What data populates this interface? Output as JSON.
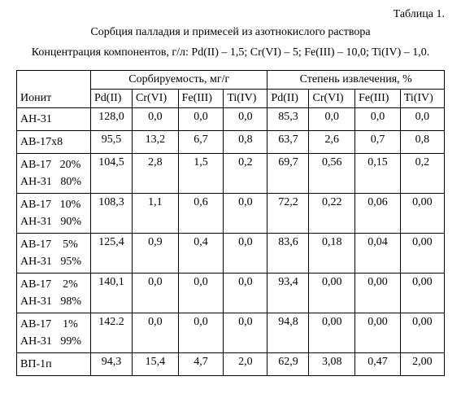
{
  "table_label": "Таблица 1.",
  "title": "Сорбция палладия и примесей из азотнокислого раствора",
  "subtitle": "Концентрация компонентов, г/л: Pd(II) – 1,5; Cr(VI) – 5; Fe(III) – 10,0; Ti(IV) – 1,0.",
  "headers": {
    "ionit": "Ионит",
    "sorb": "Сорбируемость, мг/г",
    "ext": "Степень извлечения, %",
    "pd": "Pd(II)",
    "cr": "Cr(VI)",
    "fe": "Fe(III)",
    "ti": "Ti(IV)"
  },
  "rows": [
    {
      "ionit_lines": [
        "АН-31"
      ],
      "sorb": [
        "128,0",
        "0,0",
        "0,0",
        "0,0"
      ],
      "ext": [
        "85,3",
        "0,0",
        "0,0",
        "0,0"
      ]
    },
    {
      "ionit_lines": [
        "АВ-17х8"
      ],
      "sorb": [
        "95,5",
        "13,2",
        "6,7",
        "0,8"
      ],
      "ext": [
        "63,7",
        "2,6",
        "0,7",
        "0,8"
      ]
    },
    {
      "ionit_lines": [
        "АВ-17   20%",
        "АН-31   80%"
      ],
      "sorb": [
        "104,5",
        "2,8",
        "1,5",
        "0,2"
      ],
      "ext": [
        "69,7",
        "0,56",
        "0,15",
        "0,2"
      ]
    },
    {
      "ionit_lines": [
        "АВ-17   10%",
        "АН-31   90%"
      ],
      "sorb": [
        "108,3",
        "1,1",
        "0,6",
        "0,0"
      ],
      "ext": [
        "72,2",
        "0,22",
        "0,06",
        "0,00"
      ]
    },
    {
      "ionit_lines": [
        "АВ-17    5%",
        "АН-31   95%"
      ],
      "sorb": [
        "125,4",
        "0,9",
        "0,4",
        "0,0"
      ],
      "ext": [
        "83,6",
        "0,18",
        "0,04",
        "0,00"
      ]
    },
    {
      "ionit_lines": [
        "АВ-17    2%",
        "АН-31   98%"
      ],
      "sorb": [
        "140,1",
        "0,0",
        "0,0",
        "0,0"
      ],
      "ext": [
        "93,4",
        "0,00",
        "0,00",
        "0,00"
      ]
    },
    {
      "ionit_lines": [
        "АВ-17    1%",
        "АН-31   99%"
      ],
      "sorb": [
        "142.2",
        "0,0",
        "0,0",
        "0,0"
      ],
      "ext": [
        "94,8",
        "0,00",
        "0,00",
        "0,00"
      ]
    },
    {
      "ionit_lines": [
        "ВП-1п"
      ],
      "sorb": [
        "94,3",
        "15,4",
        "4,7",
        "2,0"
      ],
      "ext": [
        "62,9",
        "3,08",
        "0,47",
        "2,00"
      ]
    }
  ]
}
